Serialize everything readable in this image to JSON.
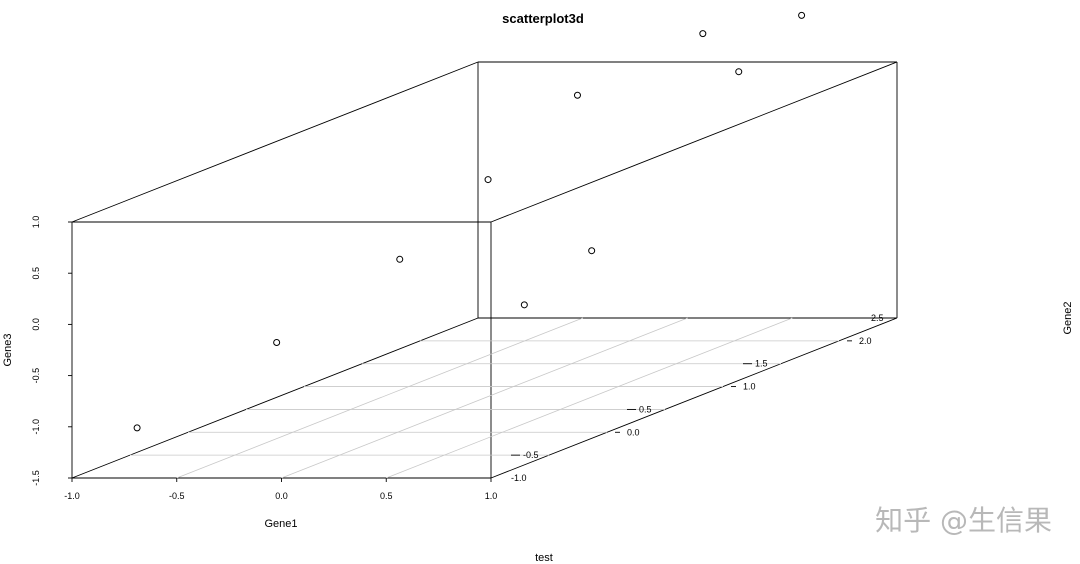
{
  "chart_data": {
    "type": "scatter",
    "title": "scatterplot3d",
    "xlabel": "Gene1",
    "ylabel": "Gene2",
    "zlabel": "Gene3",
    "sublabel": "test",
    "xlim": [
      -1.0,
      1.0
    ],
    "ylim": [
      -1.0,
      2.5
    ],
    "zlim": [
      -1.5,
      1.0
    ],
    "x_ticks": [
      "-1.0",
      "-0.5",
      "0.0",
      "0.5",
      "1.0"
    ],
    "y_ticks": [
      "-1.0",
      "-0.5",
      "0.0",
      "0.5",
      "1.0",
      "1.5",
      "2.0",
      "2.5"
    ],
    "z_ticks": [
      "-1.5",
      "-1.0",
      "-0.5",
      "0.0",
      "0.5",
      "1.0"
    ],
    "grid": true,
    "points": [
      {
        "x": -0.8,
        "y": -0.8,
        "z": -1.1
      },
      {
        "x": -0.3,
        "y": -0.5,
        "z": -0.4
      },
      {
        "x": -0.1,
        "y": 0.2,
        "z": 0.1
      },
      {
        "x": 0.1,
        "y": 0.6,
        "z": 0.7
      },
      {
        "x": 0.25,
        "y": 1.1,
        "z": 1.3
      },
      {
        "x": 0.55,
        "y": 0.1,
        "z": -0.3
      },
      {
        "x": 0.65,
        "y": 0.5,
        "z": 0.05
      },
      {
        "x": 0.35,
        "y": 2.0,
        "z": 1.5
      },
      {
        "x": 0.3,
        "y": 2.4,
        "z": 0.95
      },
      {
        "x": 0.6,
        "y": 2.4,
        "z": 1.5
      }
    ]
  },
  "watermark": "知乎 @生信果"
}
